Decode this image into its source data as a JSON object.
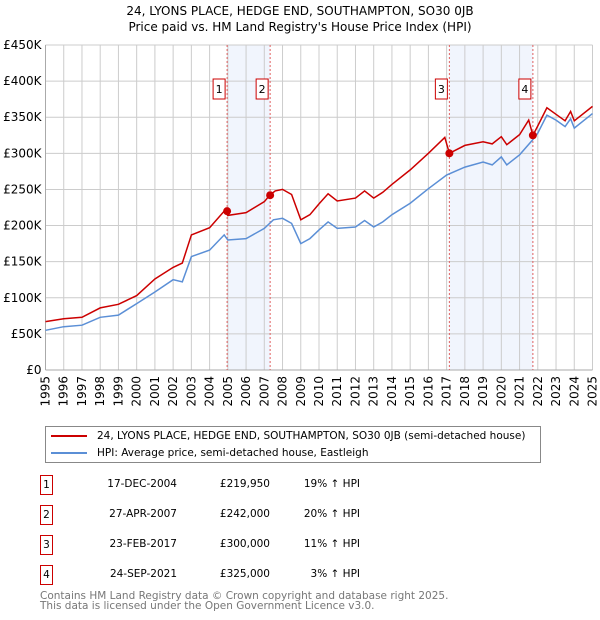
{
  "chart_data": {
    "type": "line",
    "title": "24, LYONS PLACE, HEDGE END, SOUTHAMPTON, SO30 0JB",
    "subtitle": "Price paid vs. HM Land Registry's House Price Index (HPI)",
    "xlim": [
      1995,
      2025
    ],
    "ylim": [
      0,
      450000
    ],
    "y_ticks": [
      0,
      50000,
      100000,
      150000,
      200000,
      250000,
      300000,
      350000,
      400000,
      450000
    ],
    "y_tick_labels": [
      "£0",
      "£50K",
      "£100K",
      "£150K",
      "£200K",
      "£250K",
      "£300K",
      "£350K",
      "£400K",
      "£450K"
    ],
    "x_tick_labels": [
      "1995",
      "1996",
      "1997",
      "1998",
      "1999",
      "2000",
      "2001",
      "2002",
      "2003",
      "2004",
      "2005",
      "2006",
      "2007",
      "2008",
      "2009",
      "2010",
      "2011",
      "2012",
      "2013",
      "2014",
      "2015",
      "2016",
      "2017",
      "2018",
      "2019",
      "2020",
      "2021",
      "2022",
      "2023",
      "2024",
      "2025"
    ],
    "grid": true,
    "series": [
      {
        "name": "24, LYONS PLACE, HEDGE END, SOUTHAMPTON, SO30 0JB (semi-detached house)",
        "color": "#cc0000",
        "x": [
          1995,
          1996,
          1997,
          1998,
          1999,
          2000,
          2001,
          2002,
          2002.5,
          2003,
          2004,
          2004.8,
          2005,
          2006,
          2007,
          2007.3,
          2007.6,
          2008,
          2008.5,
          2009,
          2009.5,
          2010,
          2010.5,
          2011,
          2012,
          2012.5,
          2013,
          2013.5,
          2014,
          2015,
          2016,
          2016.9,
          2017.15,
          2018,
          2019,
          2019.5,
          2020,
          2020.3,
          2021,
          2021.5,
          2021.73,
          2022,
          2022.5,
          2023,
          2023.5,
          2023.8,
          2024,
          2025
        ],
        "y": [
          67000,
          71000,
          73000,
          86000,
          91000,
          103000,
          126000,
          142000,
          148000,
          187000,
          197000,
          220000,
          214000,
          218000,
          233000,
          242000,
          248000,
          250000,
          243000,
          208000,
          215000,
          230000,
          244000,
          234000,
          238000,
          248000,
          238000,
          246000,
          257000,
          277000,
          300000,
          322000,
          300000,
          311000,
          316000,
          313000,
          323000,
          312000,
          326000,
          346000,
          325000,
          338000,
          363000,
          354000,
          345000,
          358000,
          345000,
          365000
        ]
      },
      {
        "name": "HPI: Average price, semi-detached house, Eastleigh",
        "color": "#5b8fd6",
        "x": [
          1995,
          1996,
          1997,
          1998,
          1999,
          2000,
          2001,
          2002,
          2002.5,
          2003,
          2004,
          2004.8,
          2005,
          2006,
          2007,
          2007.5,
          2008,
          2008.5,
          2009,
          2009.5,
          2010,
          2010.5,
          2011,
          2012,
          2012.5,
          2013,
          2013.5,
          2014,
          2015,
          2016,
          2017,
          2018,
          2019,
          2019.5,
          2020,
          2020.3,
          2021,
          2021.7,
          2022,
          2022.5,
          2023,
          2023.5,
          2023.8,
          2024,
          2025
        ],
        "y": [
          55000,
          60000,
          62000,
          73000,
          76000,
          92000,
          108000,
          125000,
          122000,
          157000,
          166000,
          187000,
          180000,
          182000,
          196000,
          208000,
          210000,
          203000,
          175000,
          182000,
          194000,
          205000,
          196000,
          198000,
          207000,
          198000,
          205000,
          215000,
          231000,
          251000,
          270000,
          281000,
          288000,
          284000,
          295000,
          284000,
          298000,
          318000,
          328000,
          353000,
          346000,
          337000,
          348000,
          335000,
          355000
        ]
      }
    ],
    "sales": [
      {
        "label": "1",
        "x": 2004.96,
        "price": 219950
      },
      {
        "label": "2",
        "x": 2007.32,
        "price": 242000
      },
      {
        "label": "3",
        "x": 2017.15,
        "price": 300000
      },
      {
        "label": "4",
        "x": 2021.73,
        "price": 325000
      }
    ],
    "shaded_periods": [
      [
        2004.96,
        2007.32
      ],
      [
        2017.15,
        2021.73
      ]
    ]
  },
  "legend": {
    "items": [
      {
        "label": "24, LYONS PLACE, HEDGE END, SOUTHAMPTON, SO30 0JB (semi-detached house)",
        "color": "#cc0000"
      },
      {
        "label": "HPI: Average price, semi-detached house, Eastleigh",
        "color": "#5b8fd6"
      }
    ]
  },
  "transactions": [
    {
      "num": "1",
      "date": "17-DEC-2004",
      "price": "£219,950",
      "hpi": "19% ↑ HPI"
    },
    {
      "num": "2",
      "date": "27-APR-2007",
      "price": "£242,000",
      "hpi": "20% ↑ HPI"
    },
    {
      "num": "3",
      "date": "23-FEB-2017",
      "price": "£300,000",
      "hpi": "11% ↑ HPI"
    },
    {
      "num": "4",
      "date": "24-SEP-2021",
      "price": "£325,000",
      "hpi": " 3% ↑ HPI"
    }
  ],
  "footer": {
    "line1": "Contains HM Land Registry data © Crown copyright and database right 2025.",
    "line2": "This data is licensed under the Open Government Licence v3.0."
  }
}
